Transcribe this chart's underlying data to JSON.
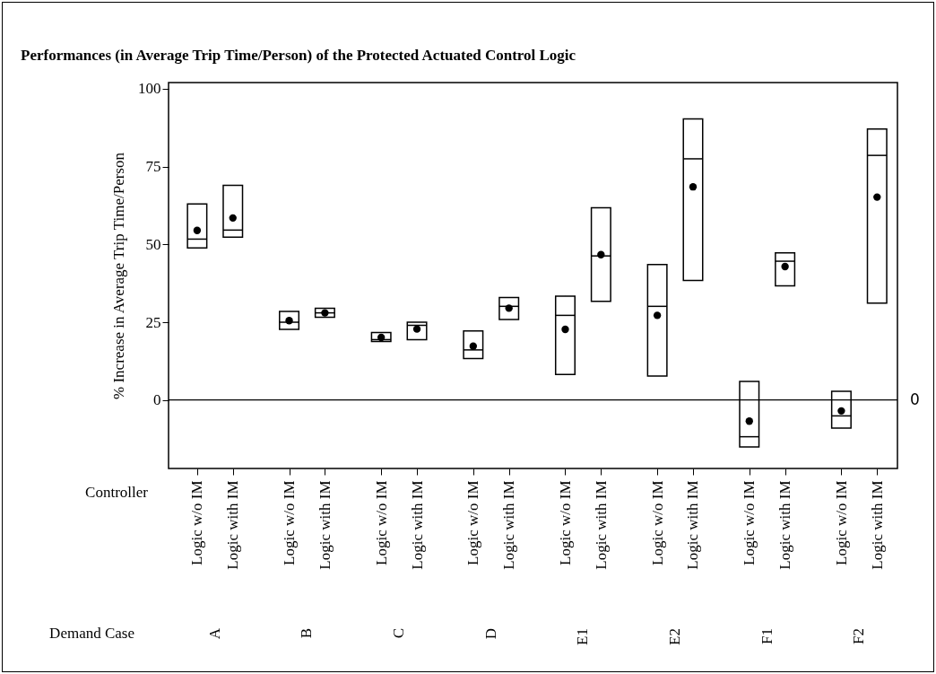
{
  "chart_data": {
    "type": "box",
    "title": "Performances (in Average Trip Time/Person) of the Protected Actuated Control Logic",
    "ylabel": "% Increase in Average Trip Time/Person",
    "categories": [
      "Logic w/o IM",
      "Logic with IM",
      "Logic w/o IM",
      "Logic with IM",
      "Logic w/o IM",
      "Logic with IM",
      "Logic w/o IM",
      "Logic with IM",
      "Logic w/o IM",
      "Logic with IM",
      "Logic w/o IM",
      "Logic with IM",
      "Logic w/o IM",
      "Logic with IM",
      "Logic w/o IM",
      "Logic with IM"
    ],
    "boxes": [
      {
        "low": 48.9,
        "q1": 48.9,
        "median": 51.7,
        "q3": 63.0,
        "high": 63.0,
        "mean": 54.5
      },
      {
        "low": 52.3,
        "q1": 52.3,
        "median": 54.6,
        "q3": 69.0,
        "high": 69.0,
        "mean": 58.5
      },
      {
        "low": 22.7,
        "q1": 22.7,
        "median": 25.0,
        "q3": 28.5,
        "high": 28.5,
        "mean": 25.5
      },
      {
        "low": 26.6,
        "q1": 26.6,
        "median": 28.0,
        "q3": 29.5,
        "high": 29.5,
        "mean": 28.0
      },
      {
        "low": 18.8,
        "q1": 18.8,
        "median": 19.4,
        "q3": 21.7,
        "high": 21.7,
        "mean": 20.1
      },
      {
        "low": 19.4,
        "q1": 19.4,
        "median": 24.0,
        "q3": 25.0,
        "high": 25.0,
        "mean": 22.8
      },
      {
        "low": 13.3,
        "q1": 13.3,
        "median": 16.1,
        "q3": 22.2,
        "high": 22.2,
        "mean": 17.3
      },
      {
        "low": 25.9,
        "q1": 25.9,
        "median": 30.1,
        "q3": 32.9,
        "high": 32.9,
        "mean": 29.5
      },
      {
        "low": 8.2,
        "q1": 8.2,
        "median": 27.2,
        "q3": 33.4,
        "high": 33.4,
        "mean": 22.7
      },
      {
        "low": 31.7,
        "q1": 31.7,
        "median": 46.3,
        "q3": 61.8,
        "high": 61.8,
        "mean": 46.7
      },
      {
        "low": 7.7,
        "q1": 7.7,
        "median": 30.1,
        "q3": 43.5,
        "high": 43.5,
        "mean": 27.2
      },
      {
        "low": 38.4,
        "q1": 38.4,
        "median": 77.5,
        "q3": 90.3,
        "high": 90.3,
        "mean": 68.5
      },
      {
        "low": -15.1,
        "q1": -15.1,
        "median": -11.8,
        "q3": 6.0,
        "high": 6.0,
        "mean": -6.8
      },
      {
        "low": 36.7,
        "q1": 36.7,
        "median": 44.6,
        "q3": 47.3,
        "high": 47.3,
        "mean": 42.9
      },
      {
        "low": -9.0,
        "q1": -9.0,
        "median": -5.1,
        "q3": 2.8,
        "high": 2.8,
        "mean": -3.5
      },
      {
        "low": 31.1,
        "q1": 31.1,
        "median": 78.6,
        "q3": 87.1,
        "high": 87.1,
        "mean": 65.2
      }
    ],
    "ylim": [
      -22,
      102
    ],
    "yticks": [
      0,
      25,
      50,
      75,
      100
    ],
    "grid": false,
    "ref_lines": [
      {
        "axis": "y",
        "value": 0,
        "label": "0"
      }
    ],
    "annotations": [
      "Controller",
      "Demand Case",
      "A",
      "B",
      "C",
      "D",
      "E1",
      "E2",
      "F1",
      "F2"
    ]
  }
}
